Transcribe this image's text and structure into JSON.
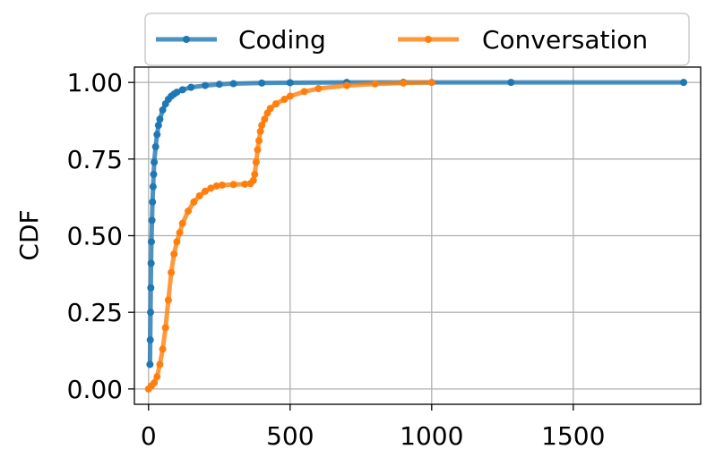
{
  "chart_data": {
    "type": "line",
    "title": "",
    "xlabel": "",
    "ylabel": "CDF",
    "xlim": [
      -50,
      1950
    ],
    "ylim": [
      -0.05,
      1.05
    ],
    "xticks": [
      0,
      500,
      1000,
      1500
    ],
    "xtick_labels": [
      "0",
      "500",
      "1000",
      "1500"
    ],
    "yticks": [
      0,
      0.25,
      0.5,
      0.75,
      1.0
    ],
    "ytick_labels": [
      "0.00",
      "0.25",
      "0.50",
      "0.75",
      "1.00"
    ],
    "grid": true,
    "legend": {
      "position": "top-outside",
      "columns": 2
    },
    "series": [
      {
        "name": "Coding",
        "color": "#1f77b4",
        "x": [
          5,
          6,
          7,
          8,
          9,
          10,
          12,
          14,
          16,
          18,
          20,
          25,
          30,
          35,
          40,
          50,
          60,
          70,
          80,
          90,
          100,
          120,
          150,
          200,
          250,
          300,
          400,
          500,
          700,
          900,
          1280,
          1890
        ],
        "y": [
          0.08,
          0.16,
          0.25,
          0.33,
          0.41,
          0.48,
          0.55,
          0.61,
          0.66,
          0.7,
          0.74,
          0.79,
          0.83,
          0.86,
          0.88,
          0.91,
          0.93,
          0.945,
          0.955,
          0.962,
          0.968,
          0.976,
          0.984,
          0.99,
          0.994,
          0.996,
          0.998,
          0.999,
          1.0,
          1.0,
          1.0,
          1.0
        ]
      },
      {
        "name": "Conversation",
        "color": "#ff7f0e",
        "x": [
          0,
          10,
          20,
          30,
          40,
          50,
          60,
          70,
          80,
          90,
          100,
          110,
          120,
          140,
          160,
          180,
          200,
          220,
          240,
          260,
          300,
          340,
          360,
          370,
          375,
          380,
          385,
          390,
          395,
          400,
          410,
          420,
          430,
          450,
          480,
          500,
          550,
          600,
          700,
          800,
          900,
          1000
        ],
        "y": [
          0.0,
          0.01,
          0.02,
          0.04,
          0.08,
          0.13,
          0.2,
          0.29,
          0.38,
          0.44,
          0.48,
          0.51,
          0.54,
          0.58,
          0.61,
          0.63,
          0.645,
          0.655,
          0.662,
          0.665,
          0.667,
          0.668,
          0.67,
          0.68,
          0.7,
          0.74,
          0.78,
          0.81,
          0.84,
          0.86,
          0.88,
          0.9,
          0.915,
          0.93,
          0.945,
          0.955,
          0.97,
          0.98,
          0.99,
          0.995,
          0.998,
          1.0
        ]
      }
    ]
  }
}
